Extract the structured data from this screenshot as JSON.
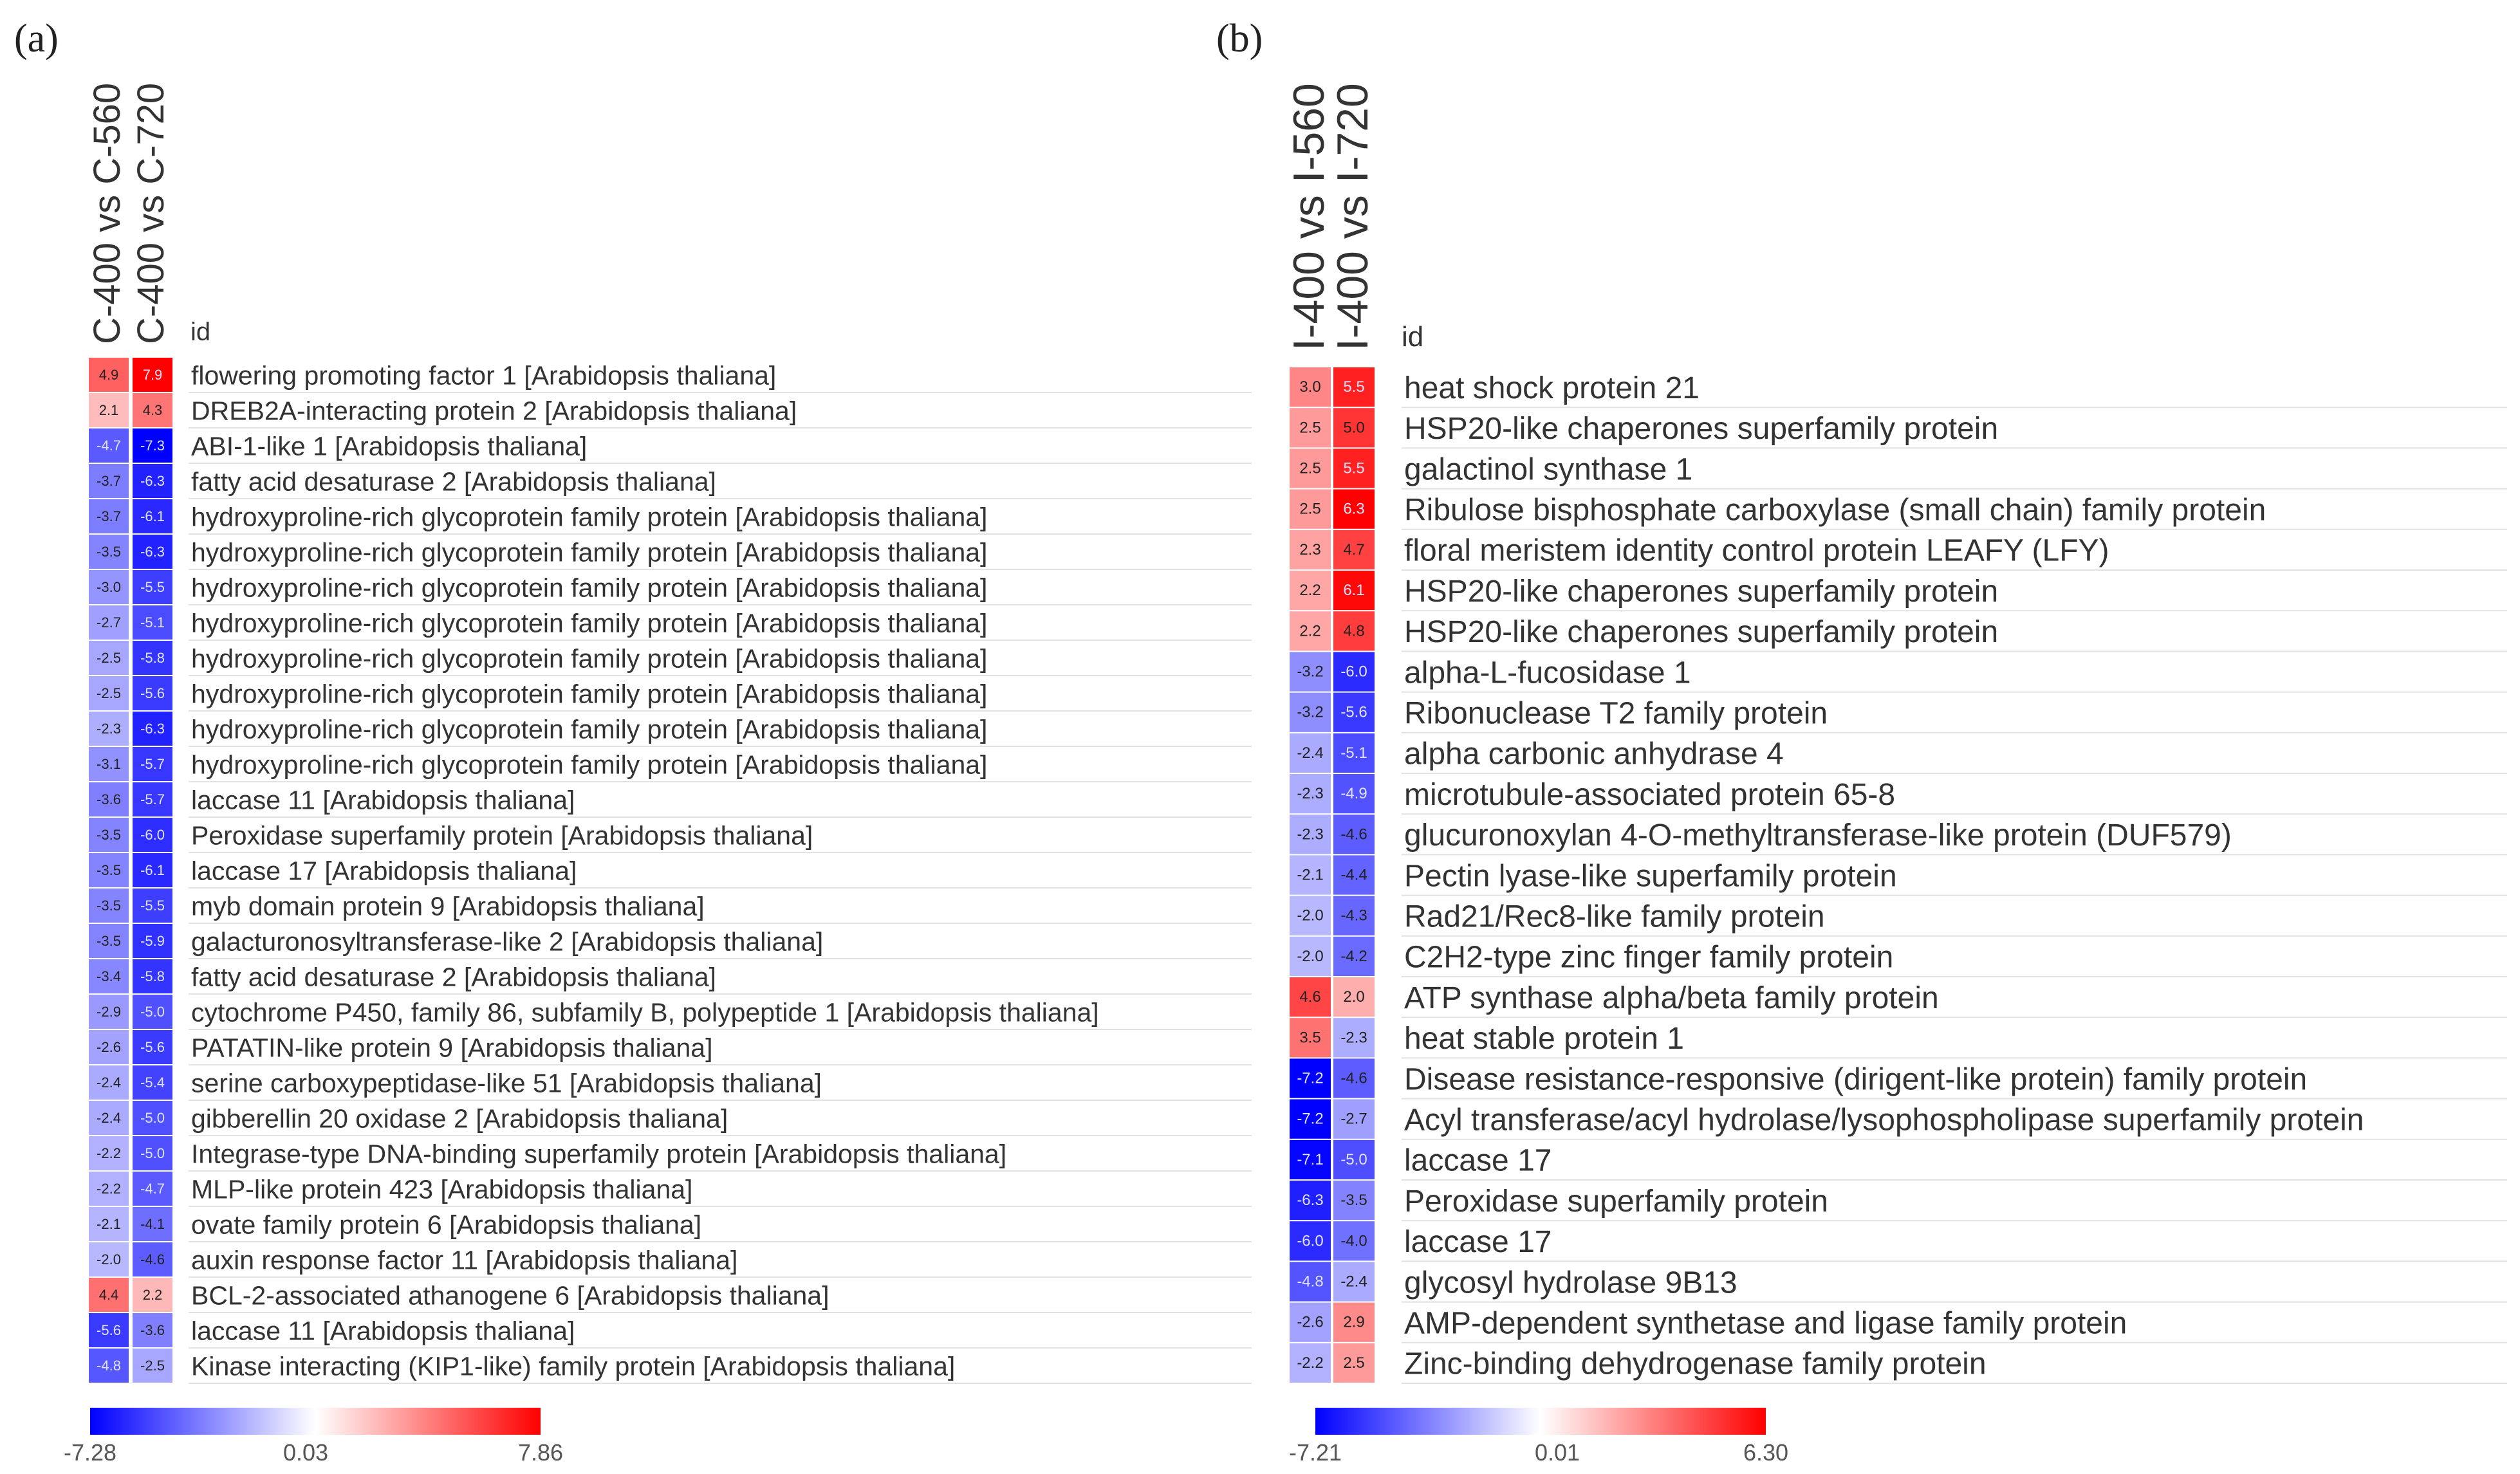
{
  "chart_data": [
    {
      "type": "heatmap",
      "panel_label": "(a)",
      "columns": [
        "C-400 vs C-560",
        "C-400 vs C-720"
      ],
      "id_header": "id",
      "rows": [
        {
          "label": "flowering promoting factor 1 [Arabidopsis thaliana]",
          "values": [
            4.9,
            7.9
          ]
        },
        {
          "label": "DREB2A-interacting protein 2 [Arabidopsis thaliana]",
          "values": [
            2.1,
            4.3
          ]
        },
        {
          "label": "ABI-1-like 1 [Arabidopsis thaliana]",
          "values": [
            -4.7,
            -7.3
          ]
        },
        {
          "label": "fatty acid desaturase 2 [Arabidopsis thaliana]",
          "values": [
            -3.7,
            -6.3
          ]
        },
        {
          "label": "hydroxyproline-rich glycoprotein family protein [Arabidopsis thaliana]",
          "values": [
            -3.7,
            -6.1
          ]
        },
        {
          "label": "hydroxyproline-rich glycoprotein family protein [Arabidopsis thaliana]",
          "values": [
            -3.5,
            -6.3
          ]
        },
        {
          "label": "hydroxyproline-rich glycoprotein family protein [Arabidopsis thaliana]",
          "values": [
            -3.0,
            -5.5
          ]
        },
        {
          "label": "hydroxyproline-rich glycoprotein family protein [Arabidopsis thaliana]",
          "values": [
            -2.7,
            -5.1
          ]
        },
        {
          "label": "hydroxyproline-rich glycoprotein family protein [Arabidopsis thaliana]",
          "values": [
            -2.5,
            -5.8
          ]
        },
        {
          "label": "hydroxyproline-rich glycoprotein family protein [Arabidopsis thaliana]",
          "values": [
            -2.5,
            -5.6
          ]
        },
        {
          "label": "hydroxyproline-rich glycoprotein family protein [Arabidopsis thaliana]",
          "values": [
            -2.3,
            -6.3
          ]
        },
        {
          "label": "hydroxyproline-rich glycoprotein family protein [Arabidopsis thaliana]",
          "values": [
            -3.1,
            -5.7
          ]
        },
        {
          "label": "laccase 11 [Arabidopsis thaliana]",
          "values": [
            -3.6,
            -5.7
          ]
        },
        {
          "label": "Peroxidase superfamily protein [Arabidopsis thaliana]",
          "values": [
            -3.5,
            -6.0
          ]
        },
        {
          "label": "laccase 17 [Arabidopsis thaliana]",
          "values": [
            -3.5,
            -6.1
          ]
        },
        {
          "label": "myb domain protein 9 [Arabidopsis thaliana]",
          "values": [
            -3.5,
            -5.5
          ]
        },
        {
          "label": "galacturonosyltransferase-like 2 [Arabidopsis thaliana]",
          "values": [
            -3.5,
            -5.9
          ]
        },
        {
          "label": "fatty acid desaturase 2 [Arabidopsis thaliana]",
          "values": [
            -3.4,
            -5.8
          ]
        },
        {
          "label": "cytochrome P450, family 86, subfamily B, polypeptide 1 [Arabidopsis thaliana]",
          "values": [
            -2.9,
            -5.0
          ]
        },
        {
          "label": "PATATIN-like protein 9 [Arabidopsis thaliana]",
          "values": [
            -2.6,
            -5.6
          ]
        },
        {
          "label": "serine carboxypeptidase-like 51 [Arabidopsis thaliana]",
          "values": [
            -2.4,
            -5.4
          ]
        },
        {
          "label": "gibberellin 20 oxidase 2 [Arabidopsis thaliana]",
          "values": [
            -2.4,
            -5.0
          ]
        },
        {
          "label": "Integrase-type DNA-binding superfamily protein [Arabidopsis thaliana]",
          "values": [
            -2.2,
            -5.0
          ]
        },
        {
          "label": "MLP-like protein 423 [Arabidopsis thaliana]",
          "values": [
            -2.2,
            -4.7
          ]
        },
        {
          "label": "ovate family protein 6 [Arabidopsis thaliana]",
          "values": [
            -2.1,
            -4.1
          ]
        },
        {
          "label": "auxin response factor 11 [Arabidopsis thaliana]",
          "values": [
            -2.0,
            -4.6
          ]
        },
        {
          "label": "BCL-2-associated athanogene 6 [Arabidopsis thaliana]",
          "values": [
            4.4,
            2.2
          ]
        },
        {
          "label": "laccase 11 [Arabidopsis thaliana]",
          "values": [
            -5.6,
            -3.6
          ]
        },
        {
          "label": "Kinase interacting (KIP1-like) family protein [Arabidopsis thaliana]",
          "values": [
            -4.8,
            -2.5
          ]
        }
      ],
      "legend": {
        "min": -7.28,
        "mid": 0.03,
        "max": 7.86,
        "min_label": "-7.28",
        "mid_label": "0.03",
        "max_label": "7.86"
      },
      "colors": {
        "low": "#0000ff",
        "mid": "#ffffff",
        "high": "#ff0000"
      }
    },
    {
      "type": "heatmap",
      "panel_label": "(b)",
      "columns": [
        "I-400 vs I-560",
        "I-400 vs I-720"
      ],
      "id_header": "id",
      "rows": [
        {
          "label": "heat shock protein 21",
          "values": [
            3.0,
            5.5
          ]
        },
        {
          "label": "HSP20-like chaperones superfamily protein",
          "values": [
            2.5,
            5.0
          ]
        },
        {
          "label": "galactinol synthase 1",
          "values": [
            2.5,
            5.5
          ]
        },
        {
          "label": "Ribulose bisphosphate carboxylase (small chain) family protein",
          "values": [
            2.5,
            6.3
          ]
        },
        {
          "label": "floral meristem identity control protein LEAFY (LFY)",
          "values": [
            2.3,
            4.7
          ]
        },
        {
          "label": "HSP20-like chaperones superfamily protein",
          "values": [
            2.2,
            6.1
          ]
        },
        {
          "label": "HSP20-like chaperones superfamily protein",
          "values": [
            2.2,
            4.8
          ]
        },
        {
          "label": "alpha-L-fucosidase 1",
          "values": [
            -3.2,
            -6.0
          ]
        },
        {
          "label": "Ribonuclease T2 family protein",
          "values": [
            -3.2,
            -5.6
          ]
        },
        {
          "label": "alpha carbonic anhydrase 4",
          "values": [
            -2.4,
            -5.1
          ]
        },
        {
          "label": "microtubule-associated protein 65-8",
          "values": [
            -2.3,
            -4.9
          ]
        },
        {
          "label": "glucuronoxylan 4-O-methyltransferase-like protein (DUF579)",
          "values": [
            -2.3,
            -4.6
          ]
        },
        {
          "label": "Pectin lyase-like superfamily protein",
          "values": [
            -2.1,
            -4.4
          ]
        },
        {
          "label": "Rad21/Rec8-like family protein",
          "values": [
            -2.0,
            -4.3
          ]
        },
        {
          "label": "C2H2-type zinc finger family protein",
          "values": [
            -2.0,
            -4.2
          ]
        },
        {
          "label": "ATP synthase alpha/beta family protein",
          "values": [
            4.6,
            2.0
          ]
        },
        {
          "label": "heat stable protein 1",
          "values": [
            3.5,
            -2.3
          ]
        },
        {
          "label": "Disease resistance-responsive (dirigent-like protein) family protein",
          "values": [
            -7.2,
            -4.6
          ]
        },
        {
          "label": "Acyl transferase/acyl hydrolase/lysophospholipase superfamily protein",
          "values": [
            -7.2,
            -2.7
          ]
        },
        {
          "label": "laccase 17",
          "values": [
            -7.1,
            -5.0
          ]
        },
        {
          "label": "Peroxidase superfamily protein",
          "values": [
            -6.3,
            -3.5
          ]
        },
        {
          "label": "laccase 17",
          "values": [
            -6.0,
            -4.0
          ]
        },
        {
          "label": "glycosyl hydrolase 9B13",
          "values": [
            -4.8,
            -2.4
          ]
        },
        {
          "label": "AMP-dependent synthetase and ligase family protein",
          "values": [
            -2.6,
            2.9
          ]
        },
        {
          "label": "Zinc-binding dehydrogenase family protein",
          "values": [
            -2.2,
            2.5
          ]
        }
      ],
      "legend": {
        "min": -7.21,
        "mid": 0.01,
        "max": 6.3,
        "min_label": "-7.21",
        "mid_label": "0.01",
        "max_label": "6.30"
      },
      "colors": {
        "low": "#0000ff",
        "mid": "#ffffff",
        "high": "#ff0000"
      }
    }
  ]
}
